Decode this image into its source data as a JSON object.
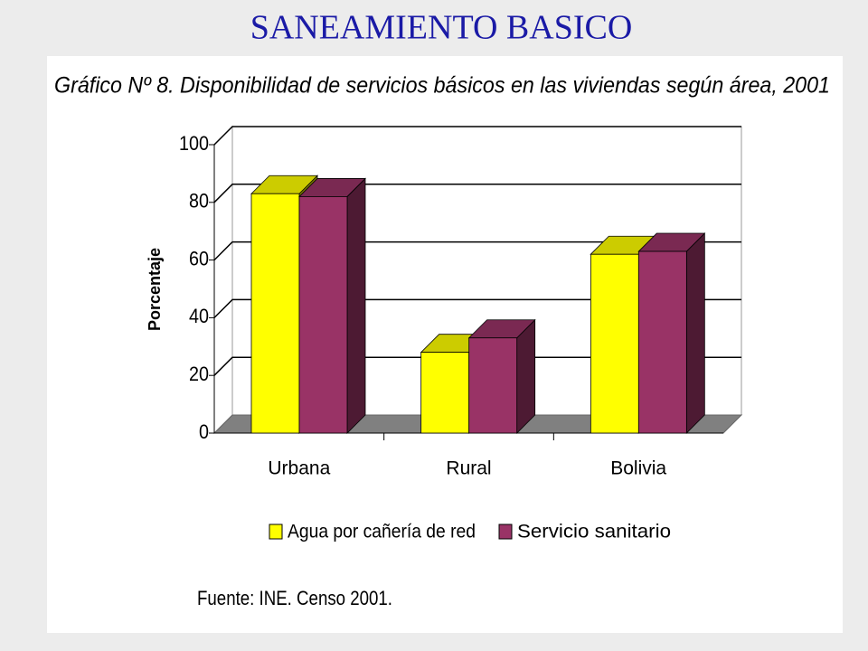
{
  "slide_title": "SANEAMIENTO BASICO",
  "chart_data": {
    "type": "bar3d",
    "title": "Gráfico Nº 8. Disponibilidad de servicios básicos en las viviendas según área, 2001",
    "y_label": "Porcentaje",
    "categories": [
      "Urbana",
      "Rural",
      "Bolivia"
    ],
    "series": [
      {
        "name": "Agua por cañería de red",
        "color": "#ffff00",
        "values": [
          83,
          28,
          62
        ]
      },
      {
        "name": "Servicio sanitario",
        "color": "#993366",
        "values": [
          82,
          33,
          63
        ]
      }
    ],
    "ylim": [
      0,
      100
    ],
    "yticks": [
      0,
      20,
      40,
      60,
      80,
      100
    ],
    "grid": true,
    "legend": "bottom",
    "source": "Fuente: INE. Censo 2001."
  }
}
